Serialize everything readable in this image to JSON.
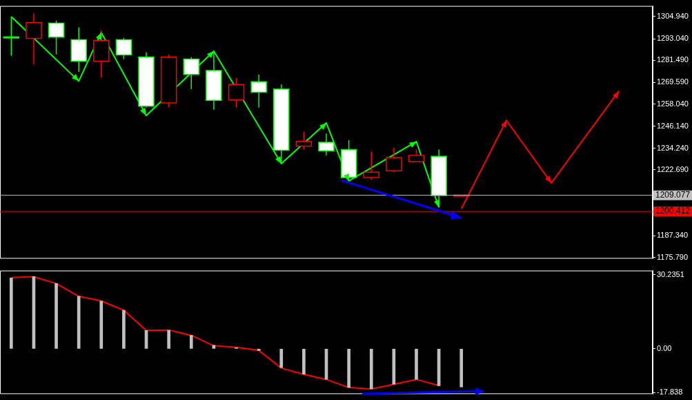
{
  "chart_data": [
    {
      "type": "candlestick",
      "categories": [
        null,
        null,
        null,
        null,
        null,
        null,
        null,
        null,
        null,
        null,
        null,
        null,
        null,
        null,
        null,
        null,
        null,
        null,
        null,
        null,
        null,
        null,
        null,
        null,
        null,
        null,
        null,
        null,
        null
      ],
      "ohlc": [
        [
          1294.0,
          1304.9,
          1283.9,
          1293.8
        ],
        [
          1293.2,
          1306.7,
          1279.3,
          1301.7
        ],
        [
          1301.4,
          1302.8,
          1284.6,
          1293.9
        ],
        [
          1292.5,
          1299.2,
          1275.3,
          1281.0
        ],
        [
          1281.0,
          1297.4,
          1272.1,
          1292.1
        ],
        [
          1292.5,
          1293.5,
          1282.1,
          1284.3
        ],
        [
          1283.2,
          1285.7,
          1256.4,
          1256.8
        ],
        [
          1258.6,
          1284.6,
          1256.4,
          1283.2
        ],
        [
          1282.1,
          1283.2,
          1266.0,
          1273.9
        ],
        [
          1276.0,
          1285.7,
          1255.0,
          1260.0
        ],
        [
          1260.3,
          1272.1,
          1256.1,
          1268.5
        ],
        [
          1270.0,
          1273.9,
          1256.1,
          1264.3
        ],
        [
          1266.0,
          1268.5,
          1226.1,
          1233.2
        ],
        [
          1235.4,
          1243.2,
          1233.6,
          1237.9
        ],
        [
          1237.5,
          1242.2,
          1230.4,
          1232.9
        ],
        [
          1233.6,
          1238.6,
          1216.8,
          1218.6
        ],
        [
          1218.6,
          1232.5,
          1217.5,
          1221.5
        ],
        [
          1222.2,
          1234.7,
          1221.5,
          1229.3
        ],
        [
          1227.2,
          1233.6,
          1227.2,
          1230.4
        ],
        [
          1230.0,
          1233.6,
          1202.9,
          1209.0
        ],
        [
          1209.0,
          1209.2,
          1209.0,
          1209.2
        ],
        null,
        null,
        null,
        null,
        null,
        null,
        null,
        null
      ],
      "colors": [
        "#ffffff",
        "#000000",
        "#ffffff",
        "#ffffff",
        "#000000",
        "#ffffff",
        "#ffffff",
        "#000000",
        "#ffffff",
        "#ffffff",
        "#000000",
        "#ffffff",
        "#ffffff",
        "#000000",
        "#ffffff",
        "#ffffff",
        "#000000",
        "#000000",
        "#000000",
        "#ffffff",
        "#000000",
        null,
        null,
        null,
        null,
        null,
        null,
        null,
        null
      ],
      "series": [
        {
          "type": "line",
          "color": "#00ff00",
          "values": [
            1304.9,
            null,
            null,
            1270.3,
            1296.4,
            null,
            1251.8,
            null,
            null,
            1286.4,
            null,
            null,
            1226.1,
            null,
            1247.9,
            1216.8,
            null,
            null,
            1237.9,
            1202.5,
            null,
            null,
            null,
            null,
            null,
            null,
            null,
            null,
            null
          ]
        },
        {
          "type": "line",
          "color": "#ff0000",
          "values": [
            null,
            null,
            null,
            null,
            null,
            null,
            null,
            null,
            null,
            null,
            null,
            null,
            null,
            null,
            null,
            null,
            null,
            null,
            null,
            null,
            1201.8,
            null,
            1249.3,
            null,
            1215.7,
            null,
            null,
            1265.0,
            null
          ]
        }
      ],
      "ylim": [
        1175.1,
        1310.6
      ],
      "yticks": [
        {
          "value": 1304.94,
          "label": "1304.940"
        },
        {
          "value": 1293.04,
          "label": "1293.040"
        },
        {
          "value": 1281.49,
          "label": "1281.490"
        },
        {
          "value": 1269.59,
          "label": "1269.590"
        },
        {
          "value": 1258.04,
          "label": "1258.040"
        },
        {
          "value": 1246.14,
          "label": "1246.140"
        },
        {
          "value": 1234.24,
          "label": "1234.240"
        },
        {
          "value": 1222.69,
          "label": "1222.690"
        },
        {
          "value": 1187.34,
          "label": "1187.340"
        },
        {
          "value": 1175.79,
          "label": "1175.790"
        }
      ],
      "ref_lines": [
        {
          "axis": "y",
          "value": 1209.077,
          "label": "1209.077",
          "color": "#c0c0c0"
        },
        {
          "axis": "y",
          "value": 1200.412,
          "label": "1200.412",
          "color": "#ff0000"
        }
      ],
      "tick_labels": "y"
    },
    {
      "type": "bar",
      "categories": [
        null,
        null,
        null,
        null,
        null,
        null,
        null,
        null,
        null,
        null,
        null,
        null,
        null,
        null,
        null,
        null,
        null,
        null,
        null,
        null,
        null,
        null,
        null,
        null,
        null,
        null,
        null,
        null,
        null
      ],
      "series": [
        {
          "type": "bar",
          "color": "#c0c0c0",
          "values": [
            29.0,
            29.5,
            26.7,
            21.5,
            19.5,
            15.8,
            7.5,
            7.6,
            5.5,
            1.4,
            0.5,
            -0.7,
            -7.7,
            -10.4,
            -12.5,
            -15.8,
            -16.4,
            -14.5,
            -12.5,
            -15.1,
            -15.6,
            null,
            null,
            null,
            null,
            null,
            null,
            null,
            null
          ]
        },
        {
          "type": "line",
          "color": "#ff0000",
          "values": [
            29.1,
            29.5,
            26.7,
            21.5,
            19.6,
            15.8,
            7.5,
            7.7,
            5.5,
            1.3,
            0.6,
            -0.6,
            -7.9,
            -10.4,
            -12.5,
            -15.8,
            -16.4,
            -14.5,
            -12.5,
            -15.0,
            null,
            null,
            null,
            null,
            null,
            null,
            null,
            null,
            null
          ]
        }
      ],
      "ylim": [
        -18.5,
        32
      ],
      "yticks": [
        30.2351,
        {
          "value": 0,
          "label": "0.00"
        },
        -17.838
      ],
      "tick_labels": "y"
    }
  ]
}
